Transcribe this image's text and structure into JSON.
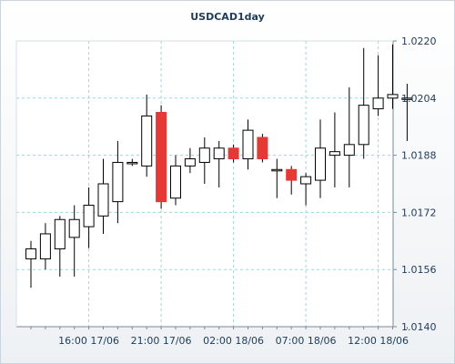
{
  "chart_data": {
    "type": "candlestick",
    "title": "USDCAD1day",
    "ylim": [
      1.014,
      1.022
    ],
    "yticks": [
      "1.0220",
      "1.0204",
      "1.0188",
      "1.0172",
      "1.0156",
      "1.0140"
    ],
    "xticks": [
      "16:00 17/06",
      "21:00 17/06",
      "02:00 18/06",
      "07:00 18/06",
      "12:00 18/06"
    ],
    "up_color": "#ffffff",
    "down_color": "#e53935",
    "grid": true,
    "candles": [
      {
        "o": 1.0159,
        "h": 1.0164,
        "l": 1.01509,
        "c": 1.01618
      },
      {
        "o": 1.0159,
        "h": 1.0169,
        "l": 1.0156,
        "c": 1.0166
      },
      {
        "o": 1.01618,
        "h": 1.0171,
        "l": 1.0154,
        "c": 1.017
      },
      {
        "o": 1.0165,
        "h": 1.0174,
        "l": 1.0154,
        "c": 1.017
      },
      {
        "o": 1.0168,
        "h": 1.0179,
        "l": 1.0162,
        "c": 1.0174
      },
      {
        "o": 1.0171,
        "h": 1.0187,
        "l": 1.0166,
        "c": 1.018
      },
      {
        "o": 1.0175,
        "h": 1.0192,
        "l": 1.0169,
        "c": 1.0186
      },
      {
        "o": 1.0186,
        "h": 1.0187,
        "l": 1.0185,
        "c": 1.0186
      },
      {
        "o": 1.0185,
        "h": 1.0205,
        "l": 1.0182,
        "c": 1.0199
      },
      {
        "o": 1.02,
        "h": 1.0202,
        "l": 1.0173,
        "c": 1.0175
      },
      {
        "o": 1.0176,
        "h": 1.0188,
        "l": 1.0174,
        "c": 1.0185
      },
      {
        "o": 1.0185,
        "h": 1.019,
        "l": 1.0183,
        "c": 1.0187
      },
      {
        "o": 1.0186,
        "h": 1.0193,
        "l": 1.018,
        "c": 1.019
      },
      {
        "o": 1.0187,
        "h": 1.0192,
        "l": 1.0179,
        "c": 1.019
      },
      {
        "o": 1.019,
        "h": 1.0191,
        "l": 1.0186,
        "c": 1.0187
      },
      {
        "o": 1.0187,
        "h": 1.0198,
        "l": 1.0184,
        "c": 1.0195
      },
      {
        "o": 1.0193,
        "h": 1.0194,
        "l": 1.0186,
        "c": 1.0187
      },
      {
        "o": 1.0184,
        "h": 1.0187,
        "l": 1.0176,
        "c": 1.0184
      },
      {
        "o": 1.0184,
        "h": 1.0185,
        "l": 1.0177,
        "c": 1.0181
      },
      {
        "o": 1.018,
        "h": 1.0183,
        "l": 1.0174,
        "c": 1.0182
      },
      {
        "o": 1.0181,
        "h": 1.0198,
        "l": 1.0176,
        "c": 1.019
      },
      {
        "o": 1.0188,
        "h": 1.02,
        "l": 1.0179,
        "c": 1.0189
      },
      {
        "o": 1.0188,
        "h": 1.0207,
        "l": 1.0179,
        "c": 1.0191
      },
      {
        "o": 1.0191,
        "h": 1.0218,
        "l": 1.0187,
        "c": 1.0202
      },
      {
        "o": 1.0201,
        "h": 1.0216,
        "l": 1.0199,
        "c": 1.0204
      },
      {
        "o": 1.0204,
        "h": 1.0219,
        "l": 1.0201,
        "c": 1.0205
      },
      {
        "o": 1.0204,
        "h": 1.0208,
        "l": 1.0192,
        "c": 1.0204
      }
    ]
  }
}
